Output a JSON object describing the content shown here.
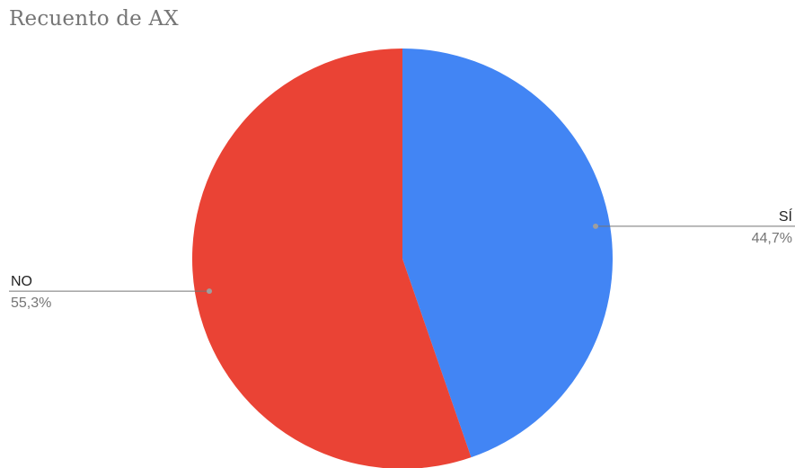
{
  "chart_data": {
    "type": "pie",
    "title": "Recuento de AX",
    "slices": [
      {
        "label": "SÍ",
        "value": 44.7,
        "percent_label": "44,7%",
        "color": "#4285f4"
      },
      {
        "label": "NO",
        "value": 55.3,
        "percent_label": "55,3%",
        "color": "#ea4335"
      }
    ],
    "start_angle_deg": 0,
    "direction": "clockwise",
    "legend": "none",
    "label_style": "leader-lines",
    "leader_color": "#757575"
  }
}
